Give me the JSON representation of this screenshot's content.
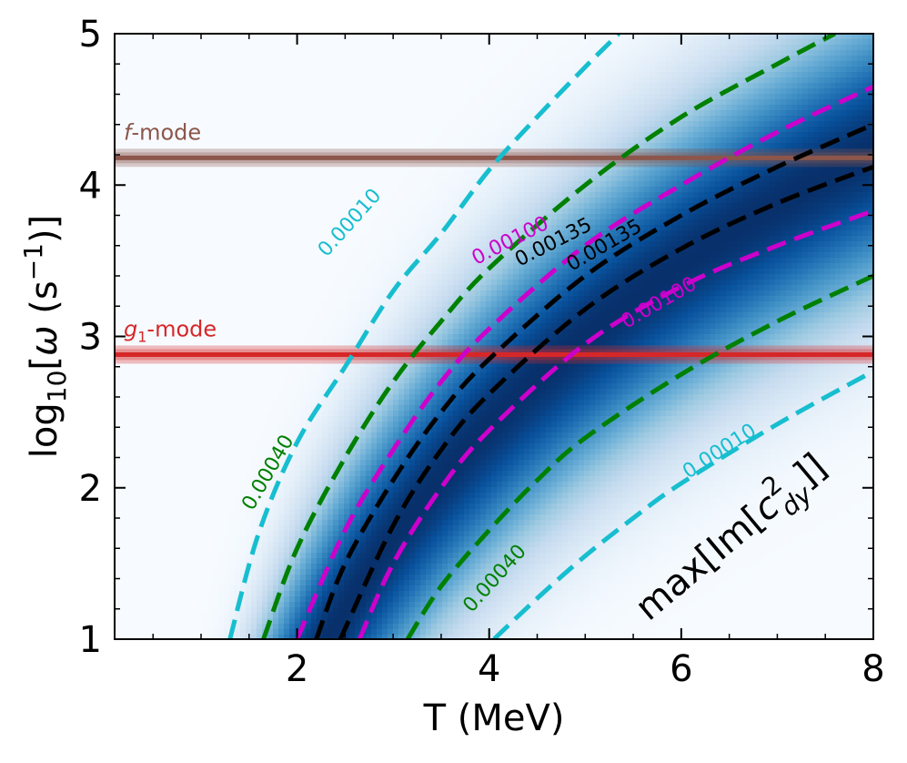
{
  "chart_data": {
    "type": "heatmap",
    "title": "",
    "xlabel": "T (MeV)",
    "ylabel_parts": [
      "log",
      "10",
      "[",
      "ω",
      " (s",
      "−1",
      ")]"
    ],
    "xlim": [
      0.1,
      8.0
    ],
    "ylim": [
      1,
      5
    ],
    "xticks": [
      2,
      4,
      6,
      8
    ],
    "xtick_labels": [
      "2",
      "4",
      "6",
      "8"
    ],
    "yticks": [
      1,
      2,
      3,
      4,
      5
    ],
    "ytick_labels": [
      "1",
      "2",
      "3",
      "4",
      "5"
    ],
    "colormap": "Blues",
    "ridge": {
      "temperature_at_logw_1": 2.32,
      "logw_at_T_8": 4.22,
      "log_band_halfwidth": 0.17
    },
    "colorbar_label_parts": [
      "max[Im[",
      "c",
      "2",
      "dy",
      "]]"
    ],
    "contours": [
      {
        "level": "0.00010",
        "color": "#17becf",
        "branch": "upper",
        "points": [
          [
            1.3,
            1.0
          ],
          [
            1.6,
            1.7
          ],
          [
            2.0,
            2.3
          ],
          [
            2.5,
            2.8
          ],
          [
            3.0,
            3.3
          ],
          [
            3.5,
            3.68
          ],
          [
            4.0,
            4.1
          ],
          [
            4.5,
            4.45
          ],
          [
            5.0,
            4.78
          ],
          [
            5.35,
            5.0
          ]
        ]
      },
      {
        "level": "0.00040",
        "color": "#008000",
        "branch": "upper",
        "points": [
          [
            1.65,
            1.0
          ],
          [
            2.0,
            1.6
          ],
          [
            2.5,
            2.2
          ],
          [
            3.0,
            2.7
          ],
          [
            3.5,
            3.1
          ],
          [
            4.0,
            3.45
          ],
          [
            5.0,
            4.0
          ],
          [
            6.0,
            4.45
          ],
          [
            7.0,
            4.8
          ],
          [
            7.6,
            5.0
          ]
        ]
      },
      {
        "level": "0.00100",
        "color": "#cc00cc",
        "branch": "upper",
        "points": [
          [
            2.0,
            1.0
          ],
          [
            2.5,
            1.72
          ],
          [
            3.0,
            2.25
          ],
          [
            3.5,
            2.7
          ],
          [
            4.0,
            3.05
          ],
          [
            5.0,
            3.6
          ],
          [
            6.0,
            4.0
          ],
          [
            7.0,
            4.35
          ],
          [
            8.0,
            4.65
          ]
        ]
      },
      {
        "level": "0.00135",
        "color": "#000000",
        "branch": "upper",
        "points": [
          [
            2.2,
            1.0
          ],
          [
            2.5,
            1.5
          ],
          [
            3.0,
            2.05
          ],
          [
            3.5,
            2.5
          ],
          [
            4.0,
            2.85
          ],
          [
            5.0,
            3.4
          ],
          [
            6.0,
            3.8
          ],
          [
            7.0,
            4.12
          ],
          [
            8.0,
            4.4
          ]
        ]
      },
      {
        "level": "0.00135",
        "color": "#000000",
        "branch": "lower",
        "points": [
          [
            2.45,
            1.0
          ],
          [
            3.0,
            1.75
          ],
          [
            3.5,
            2.25
          ],
          [
            4.0,
            2.62
          ],
          [
            5.0,
            3.18
          ],
          [
            6.0,
            3.58
          ],
          [
            7.0,
            3.88
          ],
          [
            8.0,
            4.12
          ]
        ]
      },
      {
        "level": "0.00100",
        "color": "#cc00cc",
        "branch": "lower",
        "points": [
          [
            2.65,
            1.0
          ],
          [
            3.0,
            1.5
          ],
          [
            3.5,
            2.0
          ],
          [
            4.0,
            2.38
          ],
          [
            5.0,
            2.95
          ],
          [
            6.0,
            3.33
          ],
          [
            7.0,
            3.6
          ],
          [
            8.0,
            3.83
          ]
        ]
      },
      {
        "level": "0.00040",
        "color": "#008000",
        "branch": "lower",
        "points": [
          [
            3.15,
            1.0
          ],
          [
            3.5,
            1.35
          ],
          [
            4.0,
            1.72
          ],
          [
            4.5,
            2.05
          ],
          [
            5.0,
            2.33
          ],
          [
            6.0,
            2.75
          ],
          [
            7.0,
            3.1
          ],
          [
            8.0,
            3.4
          ]
        ]
      },
      {
        "level": "0.00010",
        "color": "#17becf",
        "branch": "lower",
        "points": [
          [
            4.05,
            1.0
          ],
          [
            4.5,
            1.27
          ],
          [
            5.0,
            1.55
          ],
          [
            5.5,
            1.8
          ],
          [
            6.0,
            2.03
          ],
          [
            7.0,
            2.42
          ],
          [
            8.0,
            2.77
          ]
        ]
      }
    ],
    "contour_labels": [
      {
        "text": "0.00010",
        "color": "#17becf",
        "at": [
          2.55,
          3.75
        ],
        "rotation": -48
      },
      {
        "text": "0.00040",
        "color": "#008000",
        "at": [
          1.7,
          2.1
        ],
        "rotation": -60
      },
      {
        "text": "0.00100",
        "color": "#cc00cc",
        "at": [
          4.22,
          3.63
        ],
        "rotation": -27
      },
      {
        "text": "0.00135",
        "color": "#000000",
        "at": [
          4.67,
          3.62
        ],
        "rotation": -27
      },
      {
        "text": "0.00135",
        "color": "#000000",
        "at": [
          5.2,
          3.6
        ],
        "rotation": -30
      },
      {
        "text": "0.00100",
        "color": "#cc00cc",
        "at": [
          5.77,
          3.22
        ],
        "rotation": -30
      },
      {
        "text": "0.00040",
        "color": "#008000",
        "at": [
          4.06,
          1.4
        ],
        "rotation": -48
      },
      {
        "text": "0.00010",
        "color": "#17becf",
        "at": [
          6.4,
          2.24
        ],
        "rotation": -33
      }
    ],
    "horizontal_lines": [
      {
        "name": "f-mode",
        "value": 4.18,
        "band": 0.06,
        "color": "#8c564b",
        "label_italic": "f",
        "label_rest": "-mode",
        "label_color": "#8c564b"
      },
      {
        "name": "g1-mode",
        "value": 2.88,
        "band": 0.06,
        "color": "#d62728",
        "label_italic": "g",
        "label_sub": "1",
        "label_rest": "-mode",
        "label_color": "#d62728"
      }
    ]
  }
}
